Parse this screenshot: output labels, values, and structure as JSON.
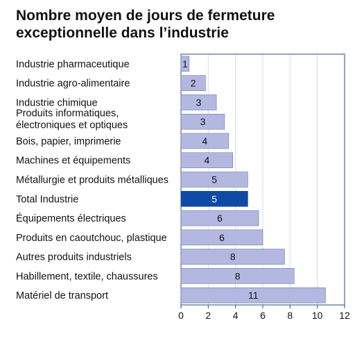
{
  "title_lines": [
    "Nombre moyen de jours de fermeture",
    "exceptionnelle dans l’industrie"
  ],
  "colors": {
    "bar": "#b3b8e0",
    "bar_stroke": "#6f78b8",
    "highlight": "#0d4aa6",
    "frame": "#2a4a78",
    "grid": "#d7dbe6"
  },
  "chart_data": {
    "type": "bar",
    "orientation": "horizontal",
    "categories": [
      [
        "Industrie pharmaceutique"
      ],
      [
        "Industrie agro-alimentaire"
      ],
      [
        "Industrie chimique"
      ],
      [
        "Produits informatiques,",
        "électroniques et optiques"
      ],
      [
        "Bois, papier, imprimerie"
      ],
      [
        "Machines et équipements"
      ],
      [
        "Métallurgie et produits métalliques"
      ],
      [
        "Total Industrie"
      ],
      [
        "Équipements électriques"
      ],
      [
        "Produits en caoutchouc, plastique"
      ],
      [
        "Autres produits industriels"
      ],
      [
        "Habillement, textile, chaussures"
      ],
      [
        "Matériel de transport"
      ]
    ],
    "values": [
      0.6,
      1.8,
      2.6,
      3.2,
      3.5,
      3.8,
      4.9,
      4.9,
      5.7,
      6.0,
      7.6,
      8.3,
      10.6
    ],
    "labels": [
      "1",
      "2",
      "3",
      "3",
      "4",
      "4",
      "5",
      "5",
      "6",
      "6",
      "8",
      "8",
      "11"
    ],
    "highlight_index": 7,
    "xlim": [
      0,
      12
    ],
    "xticks": [
      0,
      2,
      4,
      6,
      8,
      10,
      12
    ],
    "xlabel": "",
    "ylabel": "",
    "grid": "vertical"
  }
}
